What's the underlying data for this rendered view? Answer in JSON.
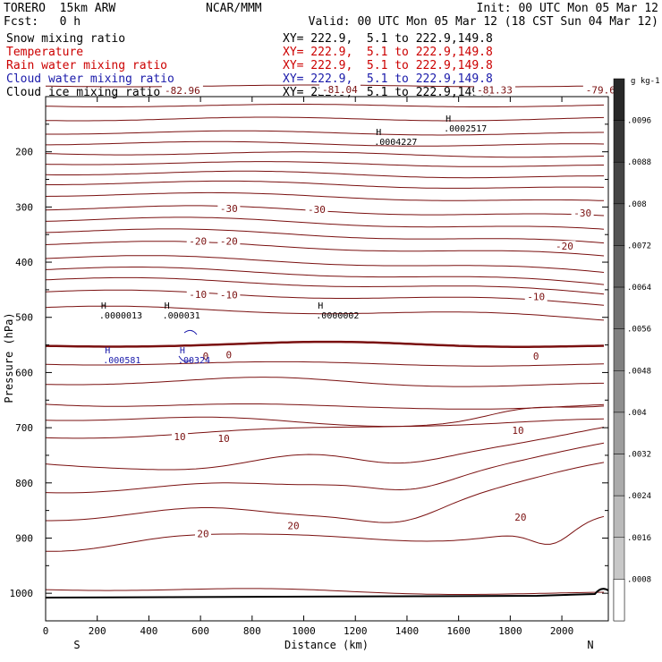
{
  "header": {
    "model": "TORERO  15km ARW",
    "center": "NCAR/MMM",
    "init": "Init: 00 UTC Mon 05 Mar 12",
    "fcst": "Fcst:   0 h",
    "valid": "Valid: 00 UTC Mon 05 Mar 12 (18 CST Sun 04 Mar 12)"
  },
  "colors": {
    "snow": "#000000",
    "temperature": "#7a1010",
    "rain": "#cc0000",
    "cloud_water": "#1a1aaa",
    "cloud_ice": "#000000",
    "freezing_line": "#7a1010"
  },
  "legend": [
    {
      "name": "Snow mixing ratio",
      "xy": "XY= 222.9,  5.1 to 222.9,149.8",
      "color": "#000000"
    },
    {
      "name": "Temperature",
      "xy": "XY= 222.9,  5.1 to 222.9,149.8",
      "color": "#cc0000"
    },
    {
      "name": "Rain water mixing ratio",
      "xy": "XY= 222.9,  5.1 to 222.9,149.8",
      "color": "#cc0000"
    },
    {
      "name": "Cloud water mixing ratio",
      "xy": "XY= 222.9,  5.1 to 222.9,149.8",
      "color": "#1a1aaa"
    },
    {
      "name": "Cloud ice mixing ratio",
      "xy": "XY= 222.9,  5.1 to 222.9,149.8",
      "color": "#000000"
    }
  ],
  "chart_data": {
    "type": "line",
    "xlabel": "Distance (km)",
    "ylabel": "Pressure (hPa)",
    "xlim": [
      0,
      2180
    ],
    "ylim": [
      100,
      1050
    ],
    "x_ticks": [
      0,
      200,
      400,
      600,
      800,
      1000,
      1200,
      1400,
      1600,
      1800,
      2000
    ],
    "y_ticks": [
      200,
      300,
      400,
      500,
      600,
      700,
      800,
      900,
      1000
    ],
    "end_labels": {
      "left": "S",
      "right": "N"
    },
    "temperature_labels": [
      {
        "x": 530,
        "p": 89,
        "text": "-82.96"
      },
      {
        "x": 1140,
        "p": 87,
        "text": "-81.04"
      },
      {
        "x": 1740,
        "p": 88,
        "text": "-81.33"
      },
      {
        "x": 2150,
        "p": 88,
        "text": "-79.6"
      },
      {
        "x": 710,
        "p": 303,
        "text": "-30"
      },
      {
        "x": 1050,
        "p": 304,
        "text": "-30"
      },
      {
        "x": 2080,
        "p": 311,
        "text": "-30"
      },
      {
        "x": 590,
        "p": 362,
        "text": "-20"
      },
      {
        "x": 710,
        "p": 362,
        "text": "-20"
      },
      {
        "x": 2010,
        "p": 371,
        "text": "-20"
      },
      {
        "x": 590,
        "p": 458,
        "text": "-10"
      },
      {
        "x": 710,
        "p": 459,
        "text": "-10"
      },
      {
        "x": 1900,
        "p": 462,
        "text": "-10"
      },
      {
        "x": 620,
        "p": 570,
        "text": "0"
      },
      {
        "x": 710,
        "p": 568,
        "text": "0"
      },
      {
        "x": 1900,
        "p": 570,
        "text": "0"
      },
      {
        "x": 520,
        "p": 716,
        "text": "10"
      },
      {
        "x": 690,
        "p": 719,
        "text": "10"
      },
      {
        "x": 1830,
        "p": 705,
        "text": "10"
      },
      {
        "x": 610,
        "p": 892,
        "text": "20"
      },
      {
        "x": 960,
        "p": 877,
        "text": "20"
      },
      {
        "x": 1840,
        "p": 862,
        "text": "20"
      }
    ],
    "mixing_maxima": [
      {
        "x": 1290,
        "p": 183,
        "h": "H",
        "value": ".0004227",
        "color": "#000000"
      },
      {
        "x": 1560,
        "p": 158,
        "h": "H",
        "value": ".0002517",
        "color": "#000000"
      },
      {
        "x": 225,
        "p": 497,
        "h": "H",
        "value": ".0000013",
        "color": "#000000"
      },
      {
        "x": 470,
        "p": 497,
        "h": "H",
        "value": ".000031",
        "color": "#000000"
      },
      {
        "x": 1065,
        "p": 497,
        "h": "H",
        "value": ".0000002",
        "color": "#000000"
      },
      {
        "x": 240,
        "p": 578,
        "h": "H",
        "value": ".000581",
        "color": "#1a1aaa"
      },
      {
        "x": 530,
        "p": 578,
        "h": "H",
        "value": ".00324",
        "color": "#1a1aaa"
      }
    ],
    "colorbar": {
      "unit": "g kg-1",
      "labels": [
        ".0096",
        ".0088",
        ".008",
        ".0072",
        ".0064",
        ".0056",
        ".0048",
        ".004",
        ".0032",
        ".0024",
        ".0016",
        ".0008"
      ]
    }
  }
}
